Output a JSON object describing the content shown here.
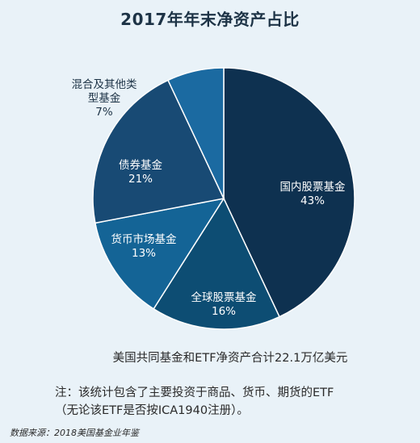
{
  "chart_data": {
    "type": "pie",
    "title": "2017年年末净资产占比",
    "slices": [
      {
        "label": "国内股票基金",
        "value": 43,
        "pct_label": "43%",
        "color": "#0e3150",
        "text_color": "#ffffff"
      },
      {
        "label": "全球股票基金",
        "value": 16,
        "pct_label": "16%",
        "color": "#0d4d73",
        "text_color": "#ffffff"
      },
      {
        "label": "货币市场基金",
        "value": 13,
        "pct_label": "13%",
        "color": "#146496",
        "text_color": "#ffffff"
      },
      {
        "label": "债券基金",
        "value": 21,
        "pct_label": "21%",
        "color": "#184a74",
        "text_color": "#ffffff"
      },
      {
        "label_lines": [
          "混合及其他类",
          "型基金"
        ],
        "value": 7,
        "pct_label": "7%",
        "color": "#1b6aa1",
        "text_color": "#1d3346"
      }
    ]
  },
  "summary": "美国共同基金和ETF净资产合计22.1万亿美元",
  "note_lines": [
    "注：该统计包含了主要投资于商品、货币、期货的ETF",
    "（无论该ETF是否按ICA1940注册）。"
  ],
  "source": "数据来源：2018美国基金业年鉴"
}
